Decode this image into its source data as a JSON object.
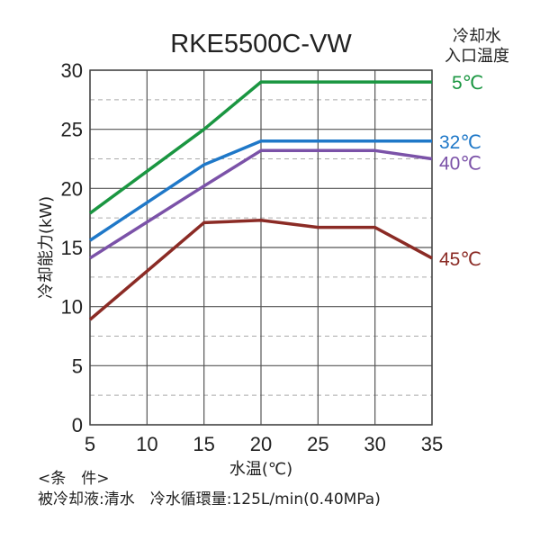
{
  "chart_data": {
    "type": "line",
    "title": "RKE5500C-VW",
    "xlabel": "水温(℃)",
    "ylabel": "冷却能力(kW)",
    "xlim": [
      5,
      35
    ],
    "ylim": [
      0,
      30
    ],
    "xticks": [
      "5",
      "10",
      "15",
      "20",
      "25",
      "30",
      "35"
    ],
    "yticks": [
      "0",
      "5",
      "10",
      "15",
      "20",
      "25",
      "30"
    ],
    "grid": true,
    "legend_title": [
      "冷却水",
      "入口温度"
    ],
    "series": [
      {
        "name": "5℃",
        "color": "#1a9641",
        "points": [
          [
            5,
            17.9
          ],
          [
            15,
            25.0
          ],
          [
            20,
            29.0
          ],
          [
            35,
            29.0
          ]
        ]
      },
      {
        "name": "32℃",
        "color": "#1f78c8",
        "points": [
          [
            5,
            15.6
          ],
          [
            15,
            22.0
          ],
          [
            20,
            24.0
          ],
          [
            35,
            24.0
          ]
        ]
      },
      {
        "name": "40℃",
        "color": "#7b52a8",
        "points": [
          [
            5,
            14.1
          ],
          [
            15,
            20.2
          ],
          [
            20,
            23.2
          ],
          [
            30,
            23.2
          ],
          [
            35,
            22.5
          ]
        ]
      },
      {
        "name": "45℃",
        "color": "#8b2b25",
        "points": [
          [
            5,
            8.9
          ],
          [
            15,
            17.1
          ],
          [
            20,
            17.3
          ],
          [
            25,
            16.7
          ],
          [
            30,
            16.7
          ],
          [
            35,
            14.1
          ]
        ]
      }
    ]
  },
  "conditions": {
    "heading": "<条　件>",
    "line": "被冷却液:清水　冷水循環量:125L/min(0.40MPa)"
  }
}
